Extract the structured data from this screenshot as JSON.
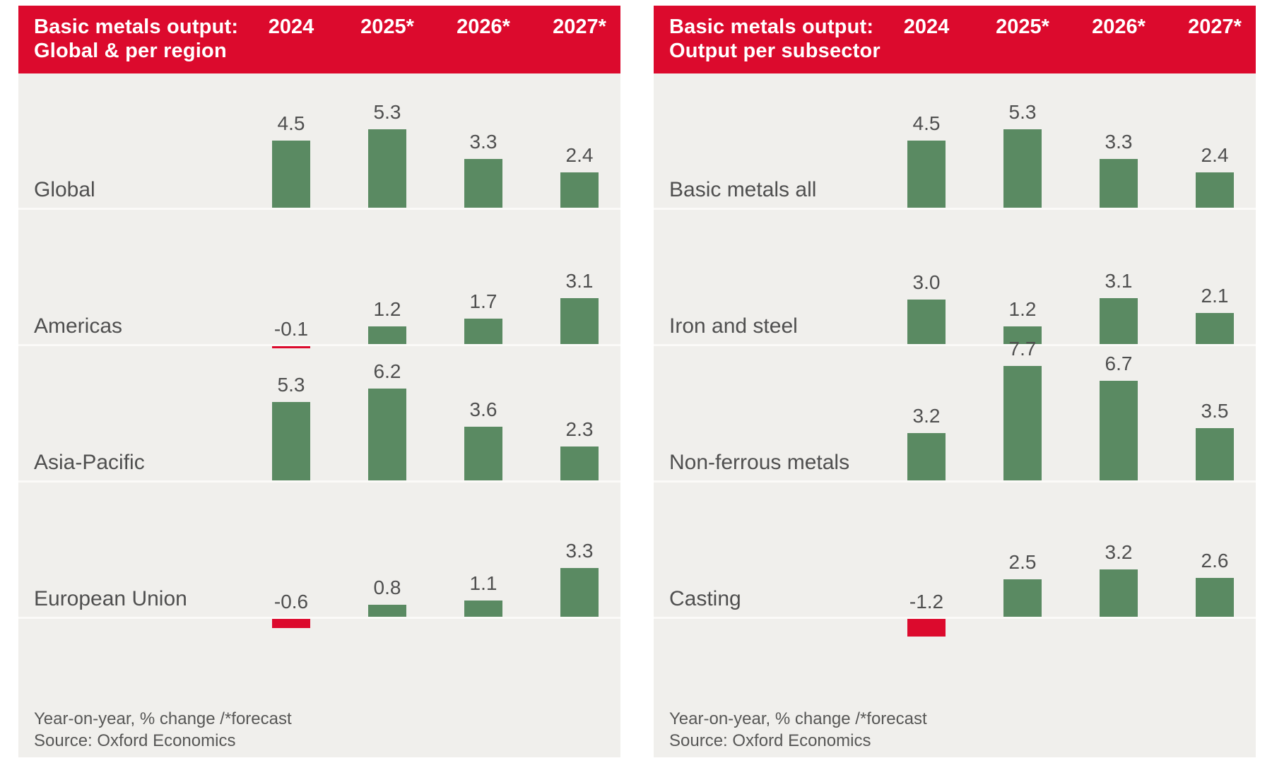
{
  "colors": {
    "header_red": "#dc0a2d",
    "bar_green": "#5a8a62",
    "bar_red": "#dc0a2d",
    "panel_background": "#f0efec",
    "text_gray": "#4f4f4f",
    "footer_gray": "#575756"
  },
  "footer": {
    "line1": "Year-on-year, % change /*forecast",
    "line2": "Source: Oxford Economics"
  },
  "chart_data": [
    {
      "type": "bar",
      "title": "Basic metals output: Global & per region",
      "title_line1": "Basic metals output:",
      "title_line2": "Global & per region",
      "categories": [
        "2024",
        "2025*",
        "2026*",
        "2027*"
      ],
      "series": [
        {
          "name": "Global",
          "values": [
            4.5,
            5.3,
            3.3,
            2.4
          ]
        },
        {
          "name": "Americas",
          "values": [
            -0.1,
            1.2,
            1.7,
            3.1
          ]
        },
        {
          "name": "Asia-Pacific",
          "values": [
            5.3,
            6.2,
            3.6,
            2.3
          ]
        },
        {
          "name": "European Union",
          "values": [
            -0.6,
            0.8,
            1.1,
            3.3
          ]
        }
      ],
      "ylabel": "Year-on-year, % change",
      "footnote": "Year-on-year, % change /*forecast",
      "source": "Source: Oxford Economics",
      "positive_color": "#5a8a62",
      "negative_color": "#dc0a2d",
      "grid": false,
      "legend": "none"
    },
    {
      "type": "bar",
      "title": "Basic metals output: Output per subsector",
      "title_line1": "Basic metals output:",
      "title_line2": "Output per subsector",
      "categories": [
        "2024",
        "2025*",
        "2026*",
        "2027*"
      ],
      "series": [
        {
          "name": "Basic metals all",
          "values": [
            4.5,
            5.3,
            3.3,
            2.4
          ]
        },
        {
          "name": "Iron and steel",
          "values": [
            3.0,
            1.2,
            3.1,
            2.1
          ]
        },
        {
          "name": "Non-ferrous metals",
          "values": [
            3.2,
            7.7,
            6.7,
            3.5
          ]
        },
        {
          "name": "Casting",
          "values": [
            -1.2,
            2.5,
            3.2,
            2.6
          ]
        }
      ],
      "ylabel": "Year-on-year, % change",
      "footnote": "Year-on-year, % change /*forecast",
      "source": "Source: Oxford Economics",
      "positive_color": "#5a8a62",
      "negative_color": "#dc0a2d",
      "grid": false,
      "legend": "none"
    }
  ]
}
